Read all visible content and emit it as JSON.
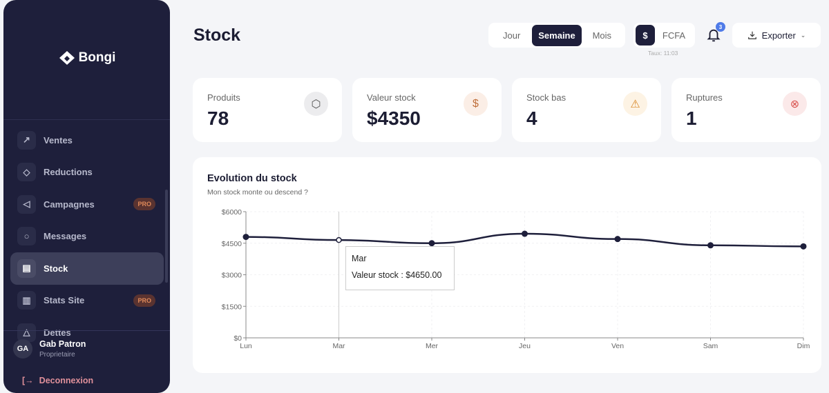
{
  "brand": "Bongi",
  "sidebar": {
    "items": [
      {
        "label": "Ventes",
        "icon": "trending-up-icon"
      },
      {
        "label": "Reductions",
        "icon": "tag-icon"
      },
      {
        "label": "Campagnes",
        "icon": "megaphone-icon",
        "badge": "PRO"
      },
      {
        "label": "Messages",
        "icon": "message-icon"
      },
      {
        "label": "Stock",
        "icon": "warehouse-icon",
        "active": true
      },
      {
        "label": "Stats Site",
        "icon": "bar-chart-icon",
        "badge": "PRO"
      },
      {
        "label": "Dettes",
        "icon": "alert-icon"
      }
    ],
    "user": {
      "initials": "GA",
      "name": "Gab Patron",
      "role": "Proprietaire"
    },
    "logout": "Deconnexion"
  },
  "header": {
    "title": "Stock",
    "periods": [
      "Jour",
      "Semaine",
      "Mois"
    ],
    "selected_period": "Semaine",
    "currency_symbol": "$",
    "currency_alt": "FCFA",
    "rate_time": "Taux: 11:03",
    "notifications": "3",
    "export": "Exporter"
  },
  "stats": [
    {
      "label": "Produits",
      "value": "78",
      "icon": "box-icon",
      "color": "#555"
    },
    {
      "label": "Valeur stock",
      "value": "$4350",
      "icon": "dollar-icon",
      "color": "#c0703c"
    },
    {
      "label": "Stock bas",
      "value": "4",
      "icon": "warning-icon",
      "color": "#d98a2b"
    },
    {
      "label": "Ruptures",
      "value": "1",
      "icon": "x-circle-icon",
      "color": "#d9534f"
    }
  ],
  "chart_data": {
    "type": "line",
    "title": "Evolution du stock",
    "subtitle": "Mon stock monte ou descend ?",
    "categories": [
      "Lun",
      "Mar",
      "Mer",
      "Jeu",
      "Ven",
      "Sam",
      "Dim"
    ],
    "series": [
      {
        "name": "Valeur stock",
        "values": [
          4800,
          4650,
          4500,
          4950,
          4700,
          4400,
          4350
        ]
      }
    ],
    "ylim": [
      0,
      6000
    ],
    "yticks": [
      "$0",
      "$1500",
      "$3000",
      "$4500",
      "$6000"
    ],
    "grid": true,
    "color": "#1e1f3b",
    "tooltip": {
      "category": "Mar",
      "text": "Valeur stock : $4650.00"
    }
  }
}
